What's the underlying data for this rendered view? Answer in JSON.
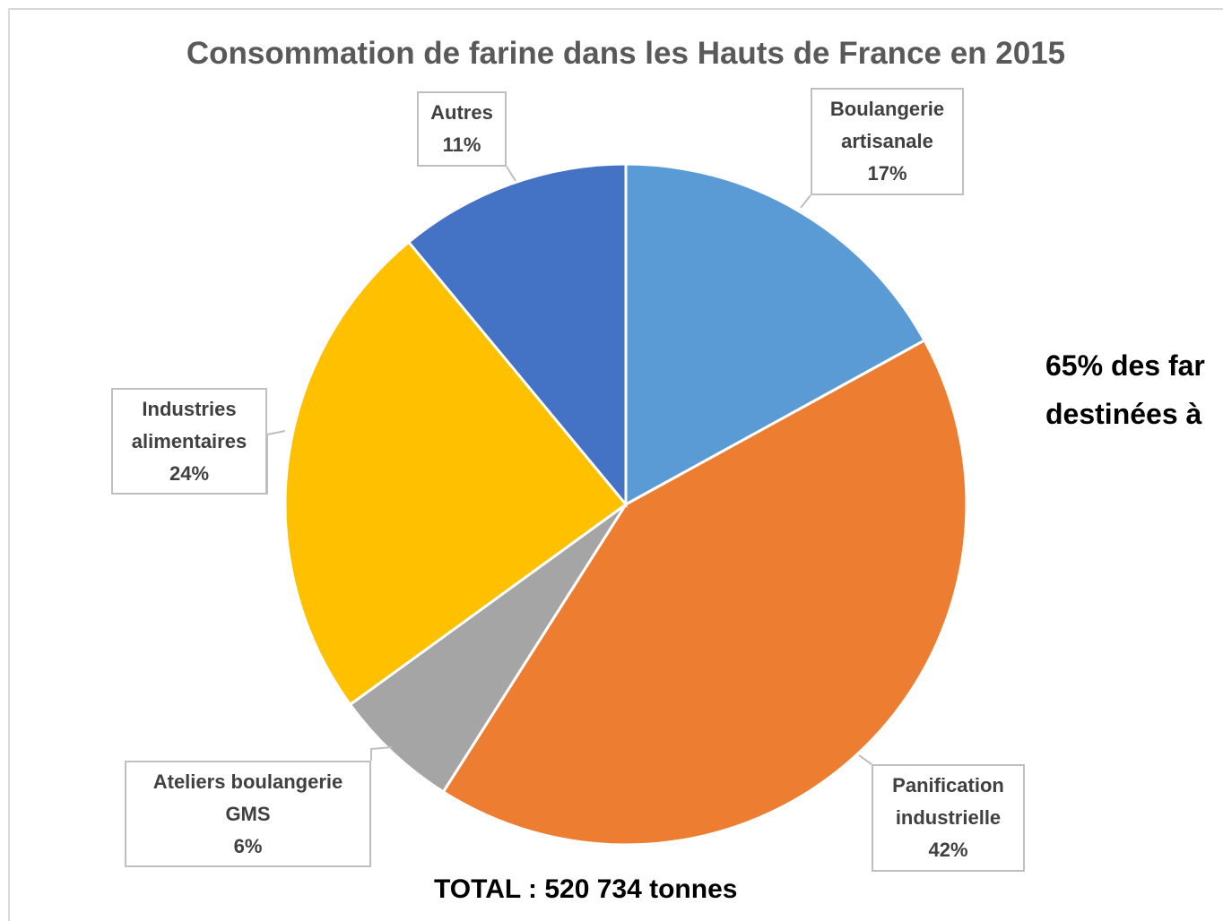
{
  "chart_data": {
    "type": "pie",
    "title": "Consommation de farine dans les Hauts de France en 2015",
    "categories": [
      "Boulangerie artisanale",
      "Panification industrielle",
      "Ateliers boulangerie GMS",
      "Industries alimentaires",
      "Autres"
    ],
    "values": [
      17,
      42,
      6,
      24,
      11
    ],
    "value_labels": [
      "17%",
      "42%",
      "6%",
      "24%",
      "11%"
    ],
    "colors": [
      "#5b9bd5",
      "#ed7d31",
      "#a5a5a5",
      "#ffc000",
      "#4472c4"
    ],
    "annotations": [
      "TOTAL : 520 734 tonnes",
      "65% des far",
      "destinées à"
    ]
  }
}
